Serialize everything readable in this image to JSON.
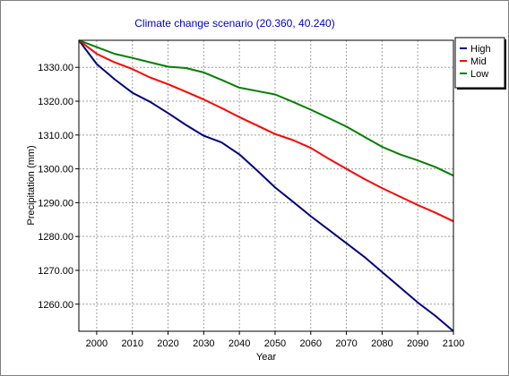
{
  "chart_data": {
    "type": "line",
    "title": "Climate change scenario (20.360, 40.240)",
    "xlabel": "Year",
    "ylabel": "Precipitation (mm)",
    "xlim": [
      1995,
      2100
    ],
    "ylim": [
      1252,
      1338
    ],
    "x_ticks": [
      2000,
      2010,
      2020,
      2030,
      2040,
      2050,
      2060,
      2070,
      2080,
      2090,
      2100
    ],
    "y_ticks": [
      1260.0,
      1270.0,
      1280.0,
      1290.0,
      1300.0,
      1310.0,
      1320.0,
      1330.0
    ],
    "x_tick_labels": [
      "2000",
      "2010",
      "2020",
      "2030",
      "2040",
      "2050",
      "2060",
      "2070",
      "2080",
      "2090",
      "2100"
    ],
    "y_tick_labels": [
      "1260.00",
      "1270.00",
      "1280.00",
      "1290.00",
      "1300.00",
      "1310.00",
      "1320.00",
      "1330.00"
    ],
    "grid": true,
    "legend_position": "top-right-outside",
    "series": [
      {
        "name": "High",
        "color": "#000080",
        "x": [
          1995,
          2000,
          2005,
          2010,
          2015,
          2020,
          2025,
          2030,
          2035,
          2040,
          2045,
          2050,
          2055,
          2060,
          2065,
          2070,
          2075,
          2080,
          2085,
          2090,
          2095,
          2100
        ],
        "y": [
          1338.0,
          1331.0,
          1326.5,
          1322.5,
          1319.8,
          1316.5,
          1313.0,
          1309.8,
          1307.8,
          1304.3,
          1299.5,
          1294.5,
          1290.3,
          1286.0,
          1282.0,
          1278.0,
          1274.0,
          1269.5,
          1265.0,
          1260.5,
          1256.5,
          1252.0
        ]
      },
      {
        "name": "Mid",
        "color": "#ff0000",
        "x": [
          1995,
          2000,
          2005,
          2010,
          2015,
          2020,
          2025,
          2030,
          2035,
          2040,
          2045,
          2050,
          2055,
          2060,
          2065,
          2070,
          2075,
          2080,
          2085,
          2090,
          2095,
          2100
        ],
        "y": [
          1338.0,
          1334.0,
          1331.5,
          1329.5,
          1327.0,
          1325.0,
          1322.8,
          1320.5,
          1318.0,
          1315.3,
          1312.8,
          1310.3,
          1308.5,
          1306.2,
          1303.0,
          1300.0,
          1297.0,
          1294.3,
          1291.8,
          1289.3,
          1287.0,
          1284.5
        ]
      },
      {
        "name": "Low",
        "color": "#008000",
        "x": [
          1995,
          2000,
          2005,
          2010,
          2015,
          2020,
          2025,
          2030,
          2035,
          2040,
          2045,
          2050,
          2055,
          2060,
          2065,
          2070,
          2075,
          2080,
          2085,
          2090,
          2095,
          2100
        ],
        "y": [
          1338.0,
          1336.0,
          1334.0,
          1332.8,
          1331.5,
          1330.2,
          1329.8,
          1328.5,
          1326.3,
          1324.0,
          1323.0,
          1322.0,
          1319.8,
          1317.5,
          1315.0,
          1312.5,
          1309.5,
          1306.5,
          1304.3,
          1302.5,
          1300.5,
          1298.0
        ]
      }
    ]
  }
}
